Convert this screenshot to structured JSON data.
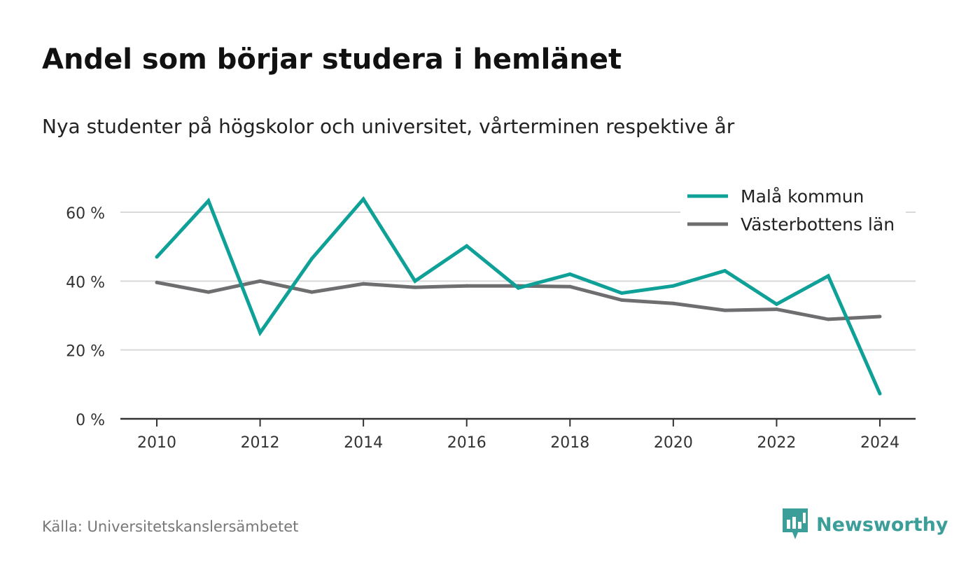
{
  "header": {
    "title": "Andel som börjar studera i hemlänet",
    "subtitle": "Nya studenter på högskolor och universitet, vårterminen respektive år"
  },
  "footer": {
    "source": "Källa: Universitetskanslersämbetet",
    "brand": "Newsworthy",
    "brand_color": "#3c9e98"
  },
  "chart_data": {
    "type": "line",
    "title": "Andel som börjar studera i hemlänet",
    "subtitle": "Nya studenter på högskolor och universitet, vårterminen respektive år",
    "x": [
      2010,
      2011,
      2012,
      2013,
      2014,
      2015,
      2016,
      2017,
      2018,
      2019,
      2020,
      2021,
      2022,
      2023,
      2024
    ],
    "x_ticks": [
      2010,
      2012,
      2014,
      2016,
      2018,
      2020,
      2022,
      2024
    ],
    "y_ticks": [
      0,
      20,
      40,
      60
    ],
    "y_tick_labels": [
      "0 %",
      "20 %",
      "40 %",
      "60 %"
    ],
    "ylim": [
      0,
      60
    ],
    "y_unit": "%",
    "grid": "horizontal",
    "legend_position": "top-right",
    "series": [
      {
        "name": "Malå kommun",
        "color": "#0fa197",
        "values": [
          47,
          63.3,
          25,
          46.5,
          63.8,
          40,
          50.2,
          38,
          42,
          36.5,
          38.6,
          43,
          33.3,
          41.5,
          7.3
        ]
      },
      {
        "name": "Västerbottens län",
        "color": "#6e6e70",
        "values": [
          39.6,
          36.8,
          40,
          36.8,
          39.2,
          38.2,
          38.6,
          38.6,
          38.4,
          34.5,
          33.5,
          31.5,
          31.8,
          28.9,
          29.7
        ]
      }
    ]
  }
}
